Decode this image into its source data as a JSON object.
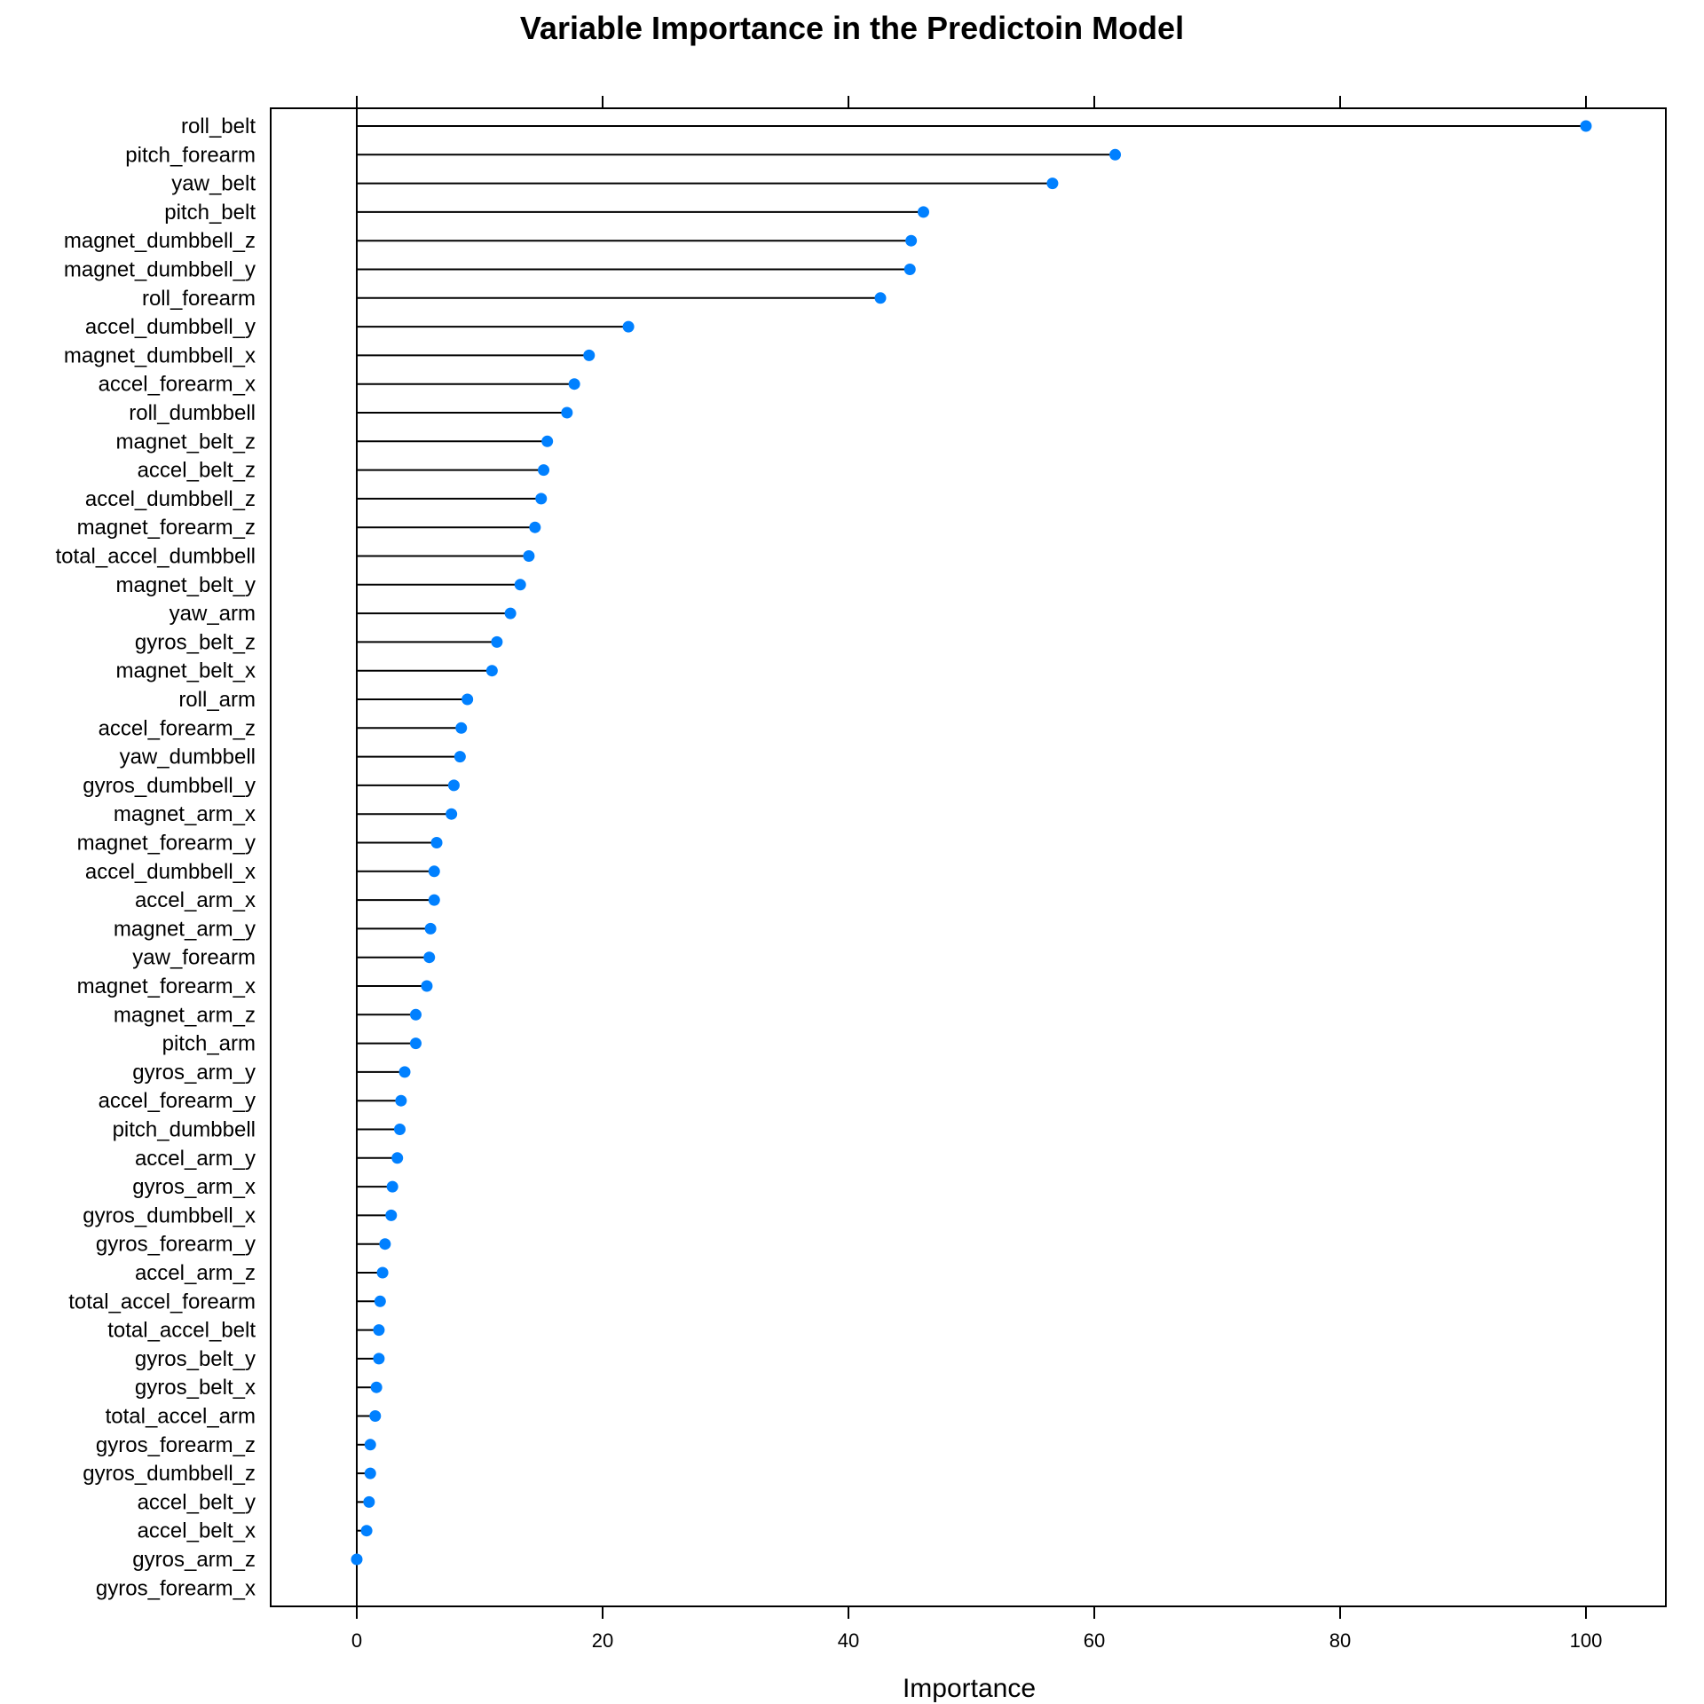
{
  "chart_data": {
    "type": "dotplot",
    "title": "Variable Importance in the Predictoin Model",
    "xlabel": "Importance",
    "ylabel": "",
    "xlim": [
      -7,
      107
    ],
    "xticks": [
      0,
      20,
      40,
      60,
      80,
      100
    ],
    "xtick_labels": [
      "0",
      "20",
      "40",
      "60",
      "80",
      "100"
    ],
    "point_color": "#0080ff",
    "line_color": "#000000",
    "grid": false,
    "categories": [
      "roll_belt",
      "pitch_forearm",
      "yaw_belt",
      "pitch_belt",
      "magnet_dumbbell_z",
      "magnet_dumbbell_y",
      "roll_forearm",
      "accel_dumbbell_y",
      "magnet_dumbbell_x",
      "accel_forearm_x",
      "roll_dumbbell",
      "magnet_belt_z",
      "accel_belt_z",
      "accel_dumbbell_z",
      "magnet_forearm_z",
      "total_accel_dumbbell",
      "magnet_belt_y",
      "yaw_arm",
      "gyros_belt_z",
      "magnet_belt_x",
      "roll_arm",
      "accel_forearm_z",
      "yaw_dumbbell",
      "gyros_dumbbell_y",
      "magnet_arm_x",
      "magnet_forearm_y",
      "accel_dumbbell_x",
      "accel_arm_x",
      "magnet_arm_y",
      "yaw_forearm",
      "magnet_forearm_x",
      "magnet_arm_z",
      "pitch_arm",
      "gyros_arm_y",
      "accel_forearm_y",
      "pitch_dumbbell",
      "accel_arm_y",
      "gyros_arm_x",
      "gyros_dumbbell_x",
      "gyros_forearm_y",
      "accel_arm_z",
      "total_accel_forearm",
      "total_accel_belt",
      "gyros_belt_y",
      "gyros_belt_x",
      "total_accel_arm",
      "gyros_forearm_z",
      "gyros_dumbbell_z",
      "accel_belt_y",
      "accel_belt_x",
      "gyros_arm_z",
      "gyros_forearm_x"
    ],
    "values": [
      100,
      61.7,
      56.6,
      46.1,
      45.1,
      45.0,
      42.6,
      22.1,
      18.9,
      17.7,
      17.1,
      15.5,
      15.2,
      15.0,
      14.5,
      14.0,
      13.3,
      12.5,
      11.4,
      11.0,
      9.0,
      8.5,
      8.4,
      7.9,
      7.7,
      6.5,
      6.3,
      6.3,
      6.0,
      5.9,
      5.7,
      4.8,
      4.8,
      3.9,
      3.6,
      3.5,
      3.3,
      2.9,
      2.8,
      2.3,
      2.1,
      1.9,
      1.8,
      1.8,
      1.6,
      1.5,
      1.1,
      1.1,
      1.0,
      0.8,
      0.0,
      null
    ]
  }
}
